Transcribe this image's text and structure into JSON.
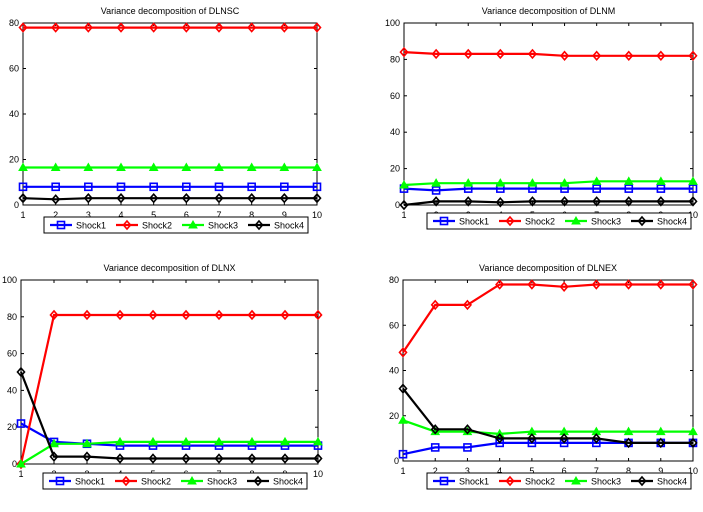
{
  "figure": {
    "series_colors": [
      "#0000ff",
      "#ff0000",
      "#00ff00",
      "#000000"
    ],
    "marker_shapes": [
      "square",
      "diamond",
      "triangle",
      "diamond"
    ]
  },
  "chart_data": [
    {
      "type": "line",
      "title": "Variance decomposition of DLNSC",
      "xlabel": "",
      "ylabel": "",
      "x": [
        1,
        2,
        3,
        4,
        5,
        6,
        7,
        8,
        9,
        10
      ],
      "xlim": [
        1,
        10
      ],
      "ylim": [
        0,
        80
      ],
      "yticks": [
        0,
        20,
        40,
        60,
        80
      ],
      "grid": false,
      "legend": "bottom",
      "series": [
        {
          "name": "Shock1",
          "values": [
            8,
            8,
            8,
            8,
            8,
            8,
            8,
            8,
            8,
            8
          ]
        },
        {
          "name": "Shock2",
          "values": [
            78,
            78,
            78,
            78,
            78,
            78,
            78,
            78,
            78,
            78
          ]
        },
        {
          "name": "Shock3",
          "values": [
            16.5,
            16.5,
            16.5,
            16.5,
            16.5,
            16.5,
            16.5,
            16.5,
            16.5,
            16.5
          ]
        },
        {
          "name": "Shock4",
          "values": [
            3,
            2.5,
            3,
            3,
            3,
            3,
            3,
            3,
            3,
            3
          ]
        }
      ]
    },
    {
      "type": "line",
      "title": "Variance decomposition of DLNM",
      "xlabel": "",
      "ylabel": "",
      "x": [
        1,
        2,
        3,
        4,
        5,
        6,
        7,
        8,
        9,
        10
      ],
      "xlim": [
        1,
        10
      ],
      "ylim": [
        0,
        100
      ],
      "yticks": [
        0,
        20,
        40,
        60,
        80,
        100
      ],
      "grid": false,
      "legend": "bottom",
      "series": [
        {
          "name": "Shock1",
          "values": [
            9,
            8,
            9,
            9,
            9,
            9,
            9,
            9,
            9,
            9
          ]
        },
        {
          "name": "Shock2",
          "values": [
            84,
            83,
            83,
            83,
            83,
            82,
            82,
            82,
            82,
            82
          ]
        },
        {
          "name": "Shock3",
          "values": [
            11,
            12,
            12,
            12,
            12,
            12,
            13,
            13,
            13,
            13
          ]
        },
        {
          "name": "Shock4",
          "values": [
            0,
            2,
            2,
            1.5,
            2,
            2,
            2,
            2,
            2,
            2
          ]
        }
      ]
    },
    {
      "type": "line",
      "title": "Variance decomposition of DLNX",
      "xlabel": "",
      "ylabel": "",
      "x": [
        1,
        2,
        3,
        4,
        5,
        6,
        7,
        8,
        9,
        10
      ],
      "xlim": [
        1,
        10
      ],
      "ylim": [
        0,
        100
      ],
      "yticks": [
        0,
        20,
        40,
        60,
        80,
        100
      ],
      "grid": false,
      "legend": "bottom",
      "series": [
        {
          "name": "Shock1",
          "values": [
            22,
            12,
            11,
            10,
            10,
            10,
            10,
            10,
            10,
            10
          ]
        },
        {
          "name": "Shock2",
          "values": [
            0,
            81,
            81,
            81,
            81,
            81,
            81,
            81,
            81,
            81
          ]
        },
        {
          "name": "Shock3",
          "values": [
            0,
            11,
            11,
            12,
            12,
            12,
            12,
            12,
            12,
            12
          ]
        },
        {
          "name": "Shock4",
          "values": [
            50,
            4,
            4,
            3,
            3,
            3,
            3,
            3,
            3,
            3
          ]
        }
      ]
    },
    {
      "type": "line",
      "title": "Variance decomposition of DLNEX",
      "xlabel": "",
      "ylabel": "",
      "x": [
        1,
        2,
        3,
        4,
        5,
        6,
        7,
        8,
        9,
        10
      ],
      "xlim": [
        1,
        10
      ],
      "ylim": [
        0,
        80
      ],
      "yticks": [
        0,
        20,
        40,
        60,
        80
      ],
      "grid": false,
      "legend": "bottom",
      "series": [
        {
          "name": "Shock1",
          "values": [
            3,
            6,
            6,
            8,
            8,
            8,
            8,
            8,
            8,
            8
          ]
        },
        {
          "name": "Shock2",
          "values": [
            48,
            69,
            69,
            78,
            78,
            77,
            78,
            78,
            78,
            78
          ]
        },
        {
          "name": "Shock3",
          "values": [
            18,
            13,
            13,
            12,
            13,
            13,
            13,
            13,
            13,
            13
          ]
        },
        {
          "name": "Shock4",
          "values": [
            32,
            14,
            14,
            10,
            10,
            10,
            10,
            8,
            8,
            8
          ]
        }
      ]
    }
  ]
}
